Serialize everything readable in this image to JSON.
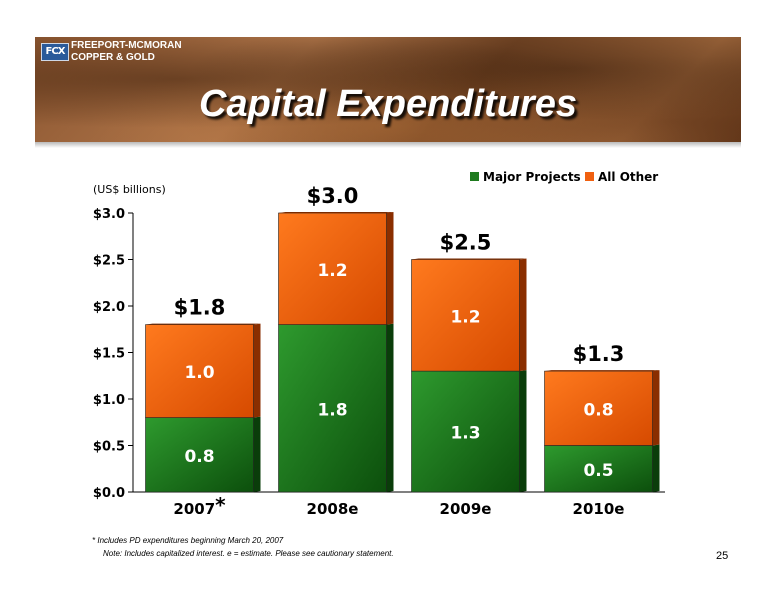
{
  "header": {
    "logo_mark": "FCX",
    "company_line1": "FREEPORT-MCMORAN",
    "company_line2": "COPPER & GOLD",
    "title": "Capital Expenditures"
  },
  "colors": {
    "major_projects": "#1e7a1e",
    "all_other": "#f06010",
    "total_label": "#000000",
    "segment_label": "#ffffff"
  },
  "chart_data": {
    "type": "bar",
    "stacked": true,
    "unit_label": "(US$ billions)",
    "categories": [
      "2007",
      "2008e",
      "2009e",
      "2010e"
    ],
    "category_markers": [
      "*",
      "",
      "",
      ""
    ],
    "series": [
      {
        "name": "Major Projects",
        "values": [
          0.8,
          1.8,
          1.3,
          0.5
        ],
        "labels": [
          "0.8",
          "1.8",
          "1.3",
          "0.5"
        ]
      },
      {
        "name": "All Other",
        "values": [
          1.0,
          1.2,
          1.2,
          0.8
        ],
        "labels": [
          "1.0",
          "1.2",
          "1.2",
          "0.8"
        ]
      }
    ],
    "totals": [
      "$1.8",
      "$3.0",
      "$2.5",
      "$1.3"
    ],
    "ylim": [
      0,
      3.0
    ],
    "yticks": [
      0,
      0.5,
      1.0,
      1.5,
      2.0,
      2.5,
      3.0
    ],
    "ytick_labels": [
      "$0.0",
      "$0.5",
      "$1.0",
      "$1.5",
      "$2.0",
      "$2.5",
      "$3.0"
    ],
    "legend_position": "top-right",
    "grid": false
  },
  "footnotes": {
    "line1_marker": "*",
    "line1": "Includes PD expenditures beginning March 20, 2007",
    "line2": "Note: Includes capitalized interest.  e = estimate. Please see cautionary statement."
  },
  "page_number": "25"
}
